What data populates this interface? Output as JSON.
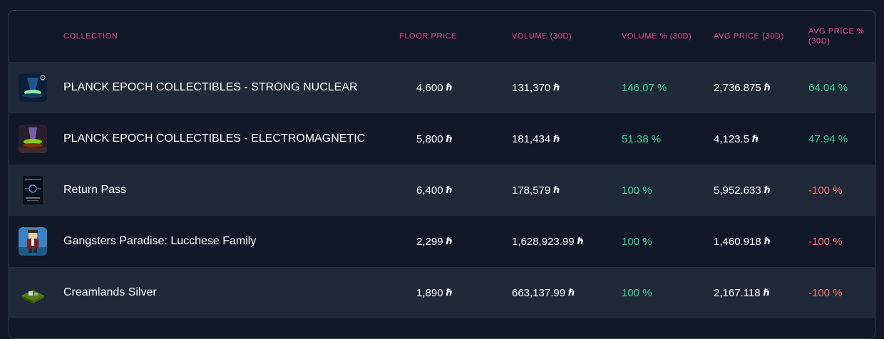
{
  "table": {
    "headers": {
      "collection": "COLLECTION",
      "floor_price": "FLOOR PRICE",
      "volume_30d": "VOLUME (30D)",
      "volume_pct_30d": "VOLUME % (30D)",
      "avg_price_30d": "AVG PRICE (30D)",
      "avg_price_pct_30d": "AVG PRICE % (30D)"
    },
    "currency_symbol": "ℏ",
    "rows": [
      {
        "thumbnail_icon": "nuclear-collectible-thumbnail",
        "name": "PLANCK EPOCH COLLECTIBLES - STRONG NUCLEAR",
        "floor_price": "4,600",
        "volume": "131,370",
        "volume_pct": "146.07 %",
        "avg_price": "2,736.875",
        "avg_price_pct": "64.04 %"
      },
      {
        "thumbnail_icon": "electromagnetic-collectible-thumbnail",
        "name": "PLANCK EPOCH COLLECTIBLES - ELECTROMAGNETIC",
        "floor_price": "5,800",
        "volume": "181,434",
        "volume_pct": "51.38 %",
        "avg_price": "4,123.5",
        "avg_price_pct": "47.94 %"
      },
      {
        "thumbnail_icon": "return-pass-thumbnail",
        "name": "Return Pass",
        "floor_price": "6,400",
        "volume": "178,579",
        "volume_pct": "100 %",
        "avg_price": "5,952.633",
        "avg_price_pct": "-100 %"
      },
      {
        "thumbnail_icon": "gangsters-paradise-thumbnail",
        "name": "Gangsters Paradise: Lucchese Family",
        "floor_price": "2,299",
        "volume": "1,628,923.99",
        "volume_pct": "100 %",
        "avg_price": "1,460.918",
        "avg_price_pct": "-100 %"
      },
      {
        "thumbnail_icon": "creamlands-thumbnail",
        "name": "Creamlands Silver",
        "floor_price": "1,890",
        "volume": "663,137.99",
        "volume_pct": "100 %",
        "avg_price": "2,167.118",
        "avg_price_pct": "-100 %"
      }
    ]
  },
  "colors": {
    "background": "#111827",
    "row_alt": "#1f2937",
    "header_text": "#ec4899",
    "positive": "#34d399",
    "negative": "#f87171"
  }
}
